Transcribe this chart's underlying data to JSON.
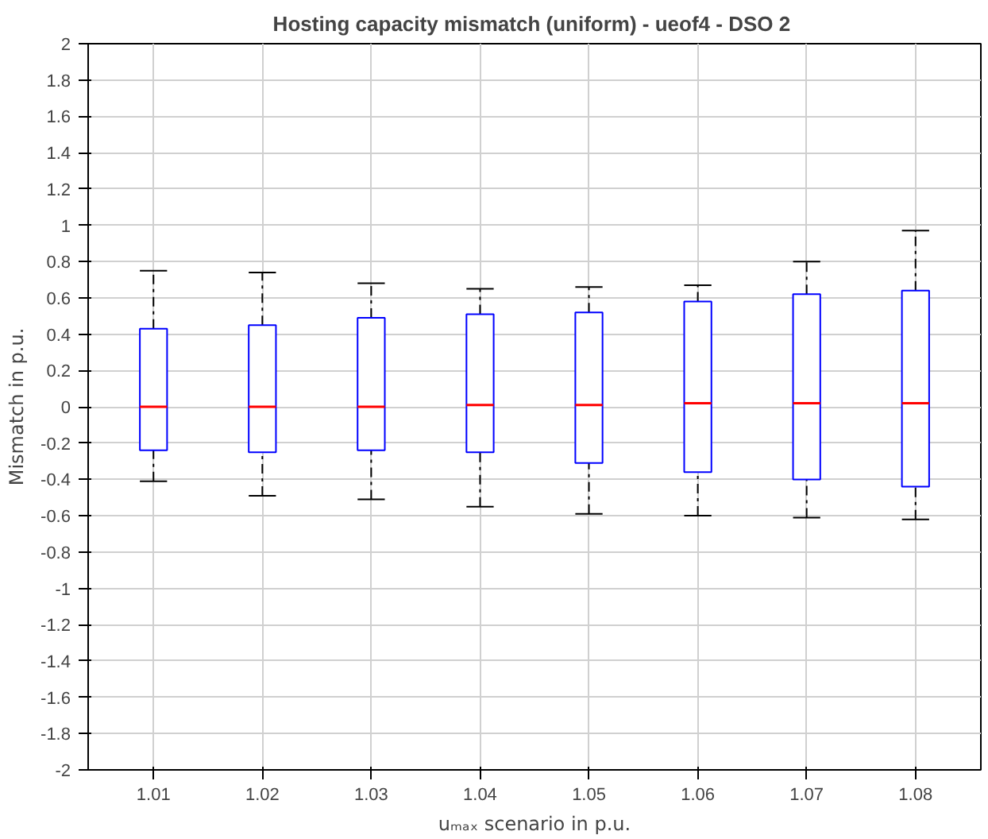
{
  "chart_data": {
    "type": "box",
    "title": "Hosting capacity mismatch (uniform) - ueof4 -  DSO 2",
    "xlabel": "uₘₐₓ scenario in p.u.",
    "ylabel": "Mismatch in p.u.",
    "categories": [
      "1.01",
      "1.02",
      "1.03",
      "1.04",
      "1.05",
      "1.06",
      "1.07",
      "1.08"
    ],
    "boxes": [
      {
        "low": -0.41,
        "q1": -0.24,
        "median": 0,
        "q3": 0.43,
        "high": 0.75
      },
      {
        "low": -0.49,
        "q1": -0.25,
        "median": 0,
        "q3": 0.45,
        "high": 0.74
      },
      {
        "low": -0.51,
        "q1": -0.24,
        "median": 0,
        "q3": 0.49,
        "high": 0.68
      },
      {
        "low": -0.55,
        "q1": -0.25,
        "median": 0.01,
        "q3": 0.51,
        "high": 0.65
      },
      {
        "low": -0.59,
        "q1": -0.31,
        "median": 0.01,
        "q3": 0.52,
        "high": 0.66
      },
      {
        "low": -0.6,
        "q1": -0.36,
        "median": 0.02,
        "q3": 0.58,
        "high": 0.67
      },
      {
        "low": -0.61,
        "q1": -0.4,
        "median": 0.02,
        "q3": 0.62,
        "high": 0.8
      },
      {
        "low": -0.62,
        "q1": -0.44,
        "median": 0.02,
        "q3": 0.64,
        "high": 0.97
      }
    ],
    "color": "#0000ff",
    "ylim": [
      -2,
      2
    ],
    "yticks": [
      -2,
      -1.8,
      -1.6,
      -1.4,
      -1.2,
      -1,
      -0.8,
      -0.6,
      -0.4,
      -0.2,
      0,
      0.2,
      0.4,
      0.6,
      0.8,
      1,
      1.2,
      1.4,
      1.6,
      1.8,
      2
    ],
    "grid": true
  }
}
